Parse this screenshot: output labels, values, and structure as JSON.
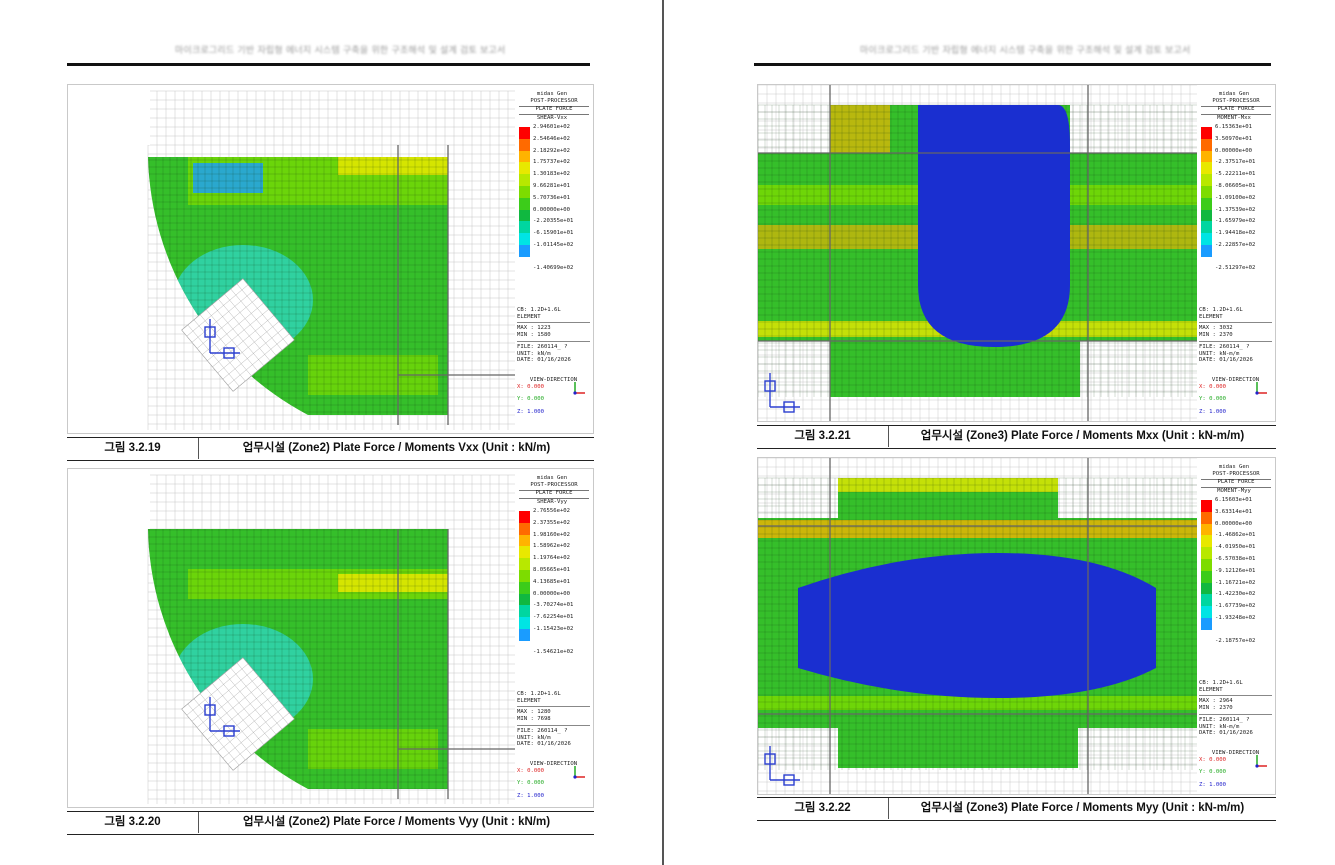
{
  "pages": {
    "left": {
      "running_head": "마이크로그리드 기반 자립형 에너지 시스템 구축을 위한 구조해석 및 설계 검토 보고서"
    },
    "right": {
      "running_head": "마이크로그리드 기반 자립형 에너지 시스템 구축을 위한 구조해석 및 설계 검토 보고서"
    }
  },
  "figures": [
    {
      "number": "그림 3.2.19",
      "title": "업무시설 (Zone2) Plate Force / Moments Vxx (Unit : kN/m)",
      "panel": {
        "app": "midas Gen",
        "proc": "POST-PROCESSOR",
        "type": "PLATE FORCE",
        "component": "SHEAR-Vxx",
        "legend": [
          "2.94601e+02",
          "2.54646e+02",
          "2.18292e+02",
          "1.75737e+02",
          "1.30183e+02",
          "9.66281e+01",
          "5.70736e+01",
          "0.00000e+00",
          "-2.20355e+01",
          "-6.15901e+01",
          "-1.01145e+02",
          "-1.40699e+02"
        ],
        "cb": "CB: 1.2D+1.6L",
        "element": "ELEMENT",
        "max": "MAX : 1223",
        "min": "MIN : 1580",
        "file": "FILE: 260114_ ?",
        "unit": "UNIT: kN/m",
        "date": "DATE: 01/16/2026",
        "view_title": "VIEW-DIRECTION",
        "vx": "X: 0.000",
        "vy": "Y: 0.000",
        "vz": "Z: 1.000"
      }
    },
    {
      "number": "그림 3.2.20",
      "title": "업무시설 (Zone2) Plate Force / Moments Vyy (Unit : kN/m)",
      "panel": {
        "app": "midas Gen",
        "proc": "POST-PROCESSOR",
        "type": "PLATE FORCE",
        "component": "SHEAR-Vyy",
        "legend": [
          "2.76556e+02",
          "2.37355e+02",
          "1.98160e+02",
          "1.58962e+02",
          "1.19764e+02",
          "8.05665e+01",
          "4.13685e+01",
          "0.00000e+00",
          "-3.70274e+01",
          "-7.62254e+01",
          "-1.15423e+02",
          "-1.54621e+02"
        ],
        "cb": "CB: 1.2D+1.6L",
        "element": "ELEMENT",
        "max": "MAX : 1280",
        "min": "MIN : 7698",
        "file": "FILE: 260114_ ?",
        "unit": "UNIT: kN/m",
        "date": "DATE: 01/16/2026",
        "view_title": "VIEW-DIRECTION",
        "vx": "X: 0.000",
        "vy": "Y: 0.000",
        "vz": "Z: 1.000"
      }
    },
    {
      "number": "그림 3.2.21",
      "title": "업무시설 (Zone3) Plate Force / Moments Mxx (Unit : kN-m/m)",
      "panel": {
        "app": "midas Gen",
        "proc": "POST-PROCESSOR",
        "type": "PLATE FORCE",
        "component": "MOMENT-Mxx",
        "legend": [
          "6.15363e+01",
          "3.50970e+01",
          "0.00000e+00",
          "-2.37517e+01",
          "-5.22211e+01",
          "-8.06605e+01",
          "-1.09100e+02",
          "-1.37539e+02",
          "-1.65979e+02",
          "-1.94418e+02",
          "-2.22857e+02",
          "-2.51297e+02"
        ],
        "cb": "CB: 1.2D+1.6L",
        "element": "ELEMENT",
        "max": "MAX : 3032",
        "min": "MIN : 2370",
        "file": "FILE: 260114_ ?",
        "unit": "UNIT: kN-m/m",
        "date": "DATE: 01/16/2026",
        "view_title": "VIEW-DIRECTION",
        "vx": "X: 0.000",
        "vy": "Y: 0.000",
        "vz": "Z: 1.000"
      }
    },
    {
      "number": "그림 3.2.22",
      "title": "업무시설 (Zone3) Plate Force / Moments Myy (Unit : kN-m/m)",
      "panel": {
        "app": "midas Gen",
        "proc": "POST-PROCESSOR",
        "type": "PLATE FORCE",
        "component": "MOMENT-Myy",
        "legend": [
          "6.15603e+01",
          "3.63314e+01",
          "0.00000e+00",
          "-1.46862e+01",
          "-4.01950e+01",
          "-6.57038e+01",
          "-9.12126e+01",
          "-1.16721e+02",
          "-1.42230e+02",
          "-1.67739e+02",
          "-1.93248e+02",
          "-2.18757e+02"
        ],
        "cb": "CB: 1.2D+1.6L",
        "element": "ELEMENT",
        "max": "MAX : 2964",
        "min": "MIN : 2370",
        "file": "FILE: 260114_ ?",
        "unit": "UNIT: kN-m/m",
        "date": "DATE: 01/16/2026",
        "view_title": "VIEW-DIRECTION",
        "vx": "X: 0.000",
        "vy": "Y: 0.000",
        "vz": "Z: 1.000"
      }
    }
  ],
  "colors": {
    "legend_scale": [
      "#ff0000",
      "#ff6a00",
      "#ffb300",
      "#e8e800",
      "#b8e800",
      "#7ddc00",
      "#3ccc1a",
      "#10b840",
      "#00d6a0",
      "#00e4e4",
      "#1a9cff",
      "#1e60e0"
    ],
    "contour_green": "#35bf2a",
    "contour_cyan": "#2fd7c8",
    "contour_blue": "#1a2fd0",
    "mesh_line": "#8a8a8a"
  }
}
